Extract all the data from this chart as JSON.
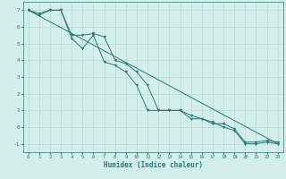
{
  "xlabel": "Humidex (Indice chaleur)",
  "bg_color": "#d4eeec",
  "grid_color": "#b2d8d4",
  "line_color": "#2a7a72",
  "xlim": [
    -0.5,
    23.5
  ],
  "ylim": [
    -1.5,
    7.5
  ],
  "yticks": [
    -1,
    0,
    1,
    2,
    3,
    4,
    5,
    6,
    7
  ],
  "xticks": [
    0,
    1,
    2,
    3,
    4,
    5,
    6,
    7,
    8,
    9,
    10,
    11,
    12,
    13,
    14,
    15,
    16,
    17,
    18,
    19,
    20,
    21,
    22,
    23
  ],
  "series1_x": [
    0,
    1,
    2,
    3,
    4,
    5,
    6,
    7,
    8,
    9,
    10,
    11,
    12,
    13,
    14,
    15,
    16,
    17,
    18,
    19,
    20,
    21,
    22,
    23
  ],
  "series1_y": [
    7.0,
    6.8,
    7.0,
    7.0,
    5.3,
    4.7,
    5.5,
    3.9,
    3.7,
    3.3,
    2.5,
    1.0,
    1.0,
    1.0,
    1.0,
    0.5,
    0.5,
    0.3,
    0.0,
    -0.2,
    -1.0,
    -1.0,
    -0.9,
    -1.0
  ],
  "series2_x": [
    0,
    1,
    2,
    3,
    4,
    5,
    6,
    7,
    8,
    9,
    10,
    11,
    12,
    13,
    14,
    15,
    16,
    17,
    18,
    19,
    20,
    21,
    22,
    23
  ],
  "series2_y": [
    7.0,
    6.7,
    7.0,
    7.0,
    5.5,
    5.5,
    5.6,
    5.4,
    4.0,
    3.8,
    3.3,
    2.5,
    1.0,
    1.0,
    1.0,
    0.7,
    0.5,
    0.2,
    0.2,
    -0.1,
    -0.9,
    -0.9,
    -0.8,
    -0.9
  ],
  "series3_x": [
    0,
    23
  ],
  "series3_y": [
    7.0,
    -1.0
  ]
}
